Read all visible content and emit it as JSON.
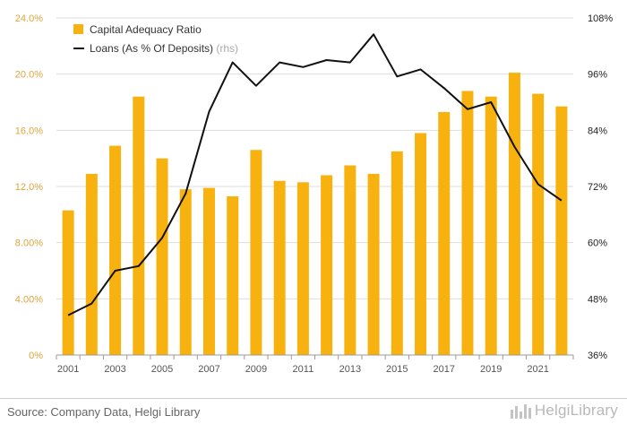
{
  "chart_data": {
    "type": "bar+line",
    "x": [
      "2001",
      "2002",
      "2003",
      "2004",
      "2005",
      "2006",
      "2007",
      "2008",
      "2009",
      "2010",
      "2011",
      "2012",
      "2013",
      "2014",
      "2015",
      "2016",
      "2017",
      "2018",
      "2019",
      "2020",
      "2021",
      "2022"
    ],
    "x_tick_labels": [
      "2001",
      "2003",
      "2005",
      "2007",
      "2009",
      "2011",
      "2013",
      "2015",
      "2017",
      "2019",
      "2021"
    ],
    "series": [
      {
        "name": "Capital Adequacy Ratio",
        "type": "bar",
        "axis": "left",
        "color": "#f7b20f",
        "values": [
          10.3,
          12.9,
          14.9,
          18.4,
          14.0,
          11.8,
          11.9,
          11.3,
          14.6,
          12.4,
          12.3,
          12.8,
          13.5,
          12.9,
          14.5,
          15.8,
          17.3,
          18.8,
          18.4,
          20.1,
          18.6,
          17.7
        ]
      },
      {
        "name": "Loans (As % Of Deposits)",
        "name_suffix": "(rhs)",
        "type": "line",
        "axis": "right",
        "color": "#111111",
        "values": [
          44.5,
          47.0,
          54.0,
          55.0,
          61.0,
          70.5,
          88.0,
          98.5,
          93.5,
          98.5,
          97.5,
          99.0,
          98.5,
          104.5,
          95.5,
          97.0,
          93.0,
          88.5,
          90.0,
          80.5,
          72.5,
          69.0
        ]
      }
    ],
    "y_left": {
      "ticks": [
        "0%",
        "4.00%",
        "8.00%",
        "12.0%",
        "16.0%",
        "20.0%",
        "24.0%"
      ],
      "range": [
        0,
        24
      ]
    },
    "y_right": {
      "ticks": [
        "36%",
        "48%",
        "60%",
        "72%",
        "84%",
        "96%",
        "108%"
      ],
      "range": [
        36,
        108
      ]
    },
    "grid": true,
    "legend": "top-left",
    "colors": {
      "bar": "#f7b20f",
      "line": "#111111",
      "tick_left": "#e0a43a",
      "grid": "#dddddd"
    }
  },
  "footer": {
    "source": "Source: Company Data, Helgi Library",
    "logo": "HelgiLibrary"
  }
}
